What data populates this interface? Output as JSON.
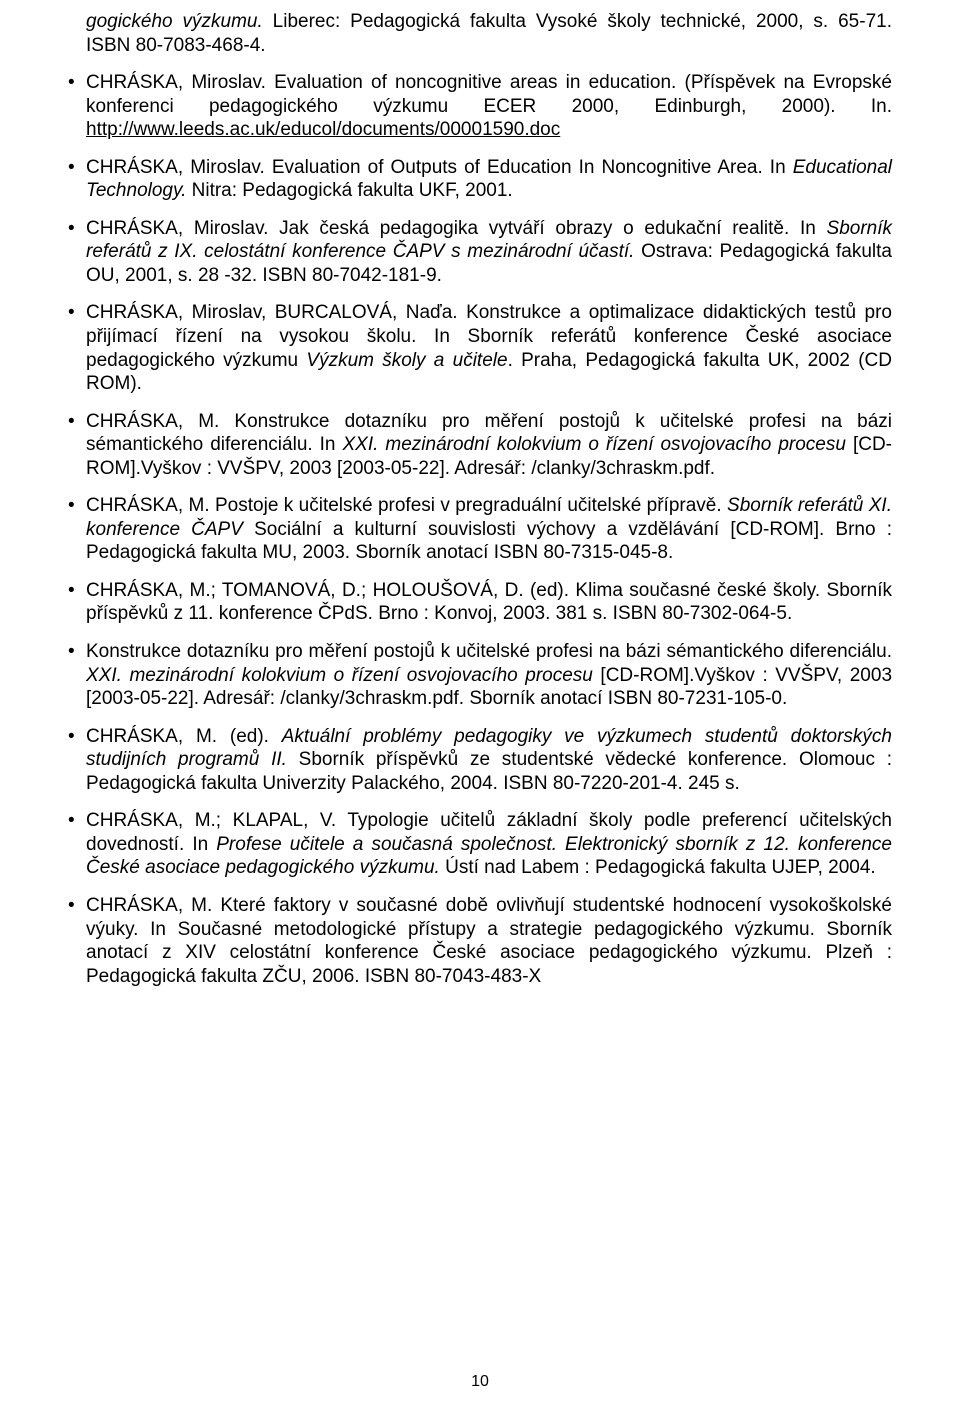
{
  "pageNumber": "10",
  "items": [
    {
      "cont": true,
      "parts": [
        {
          "t": "gogického výzkumu.",
          "i": true
        },
        {
          "t": " Liberec: Pedagogická fakulta Vysoké školy technické, 2000, s. 65-71. ISBN 80-7083-468-4."
        }
      ]
    },
    {
      "parts": [
        {
          "t": "CHRÁSKA, Miroslav. Evaluation of noncognitive areas in education. (Příspěvek na Evropské konferenci pedagogického výzkumu ECER 2000, Edinburgh, 2000). In. "
        },
        {
          "t": "http://www.leeds.ac.uk/educol/documents/00001590.doc",
          "u": true
        }
      ]
    },
    {
      "parts": [
        {
          "t": "CHRÁSKA, Miroslav. Evaluation of Outputs of Education In Noncognitive Area. In "
        },
        {
          "t": "Educational Technology.",
          "i": true
        },
        {
          "t": " Nitra: Pedagogická fakulta UKF, 2001."
        }
      ]
    },
    {
      "parts": [
        {
          "t": "CHRÁSKA, Miroslav. Jak česká pedagogika vytváří obrazy o edukační realitě. In "
        },
        {
          "t": "Sborník referátů z IX. celostátní konference ČAPV s mezinárodní účastí.",
          "i": true
        },
        {
          "t": " Ostrava: Pedagogická fakulta OU, 2001, s. 28 -32. ISBN 80-7042-181-9."
        }
      ]
    },
    {
      "parts": [
        {
          "t": "CHRÁSKA, Miroslav, BURCALOVÁ, Naďa. Konstrukce a optimalizace didaktických testů pro přijímací řízení na vysokou školu. In Sborník referátů konference České asociace pedagogického výzkumu "
        },
        {
          "t": "Výzkum školy a učitele",
          "i": true
        },
        {
          "t": ". Praha, Pedagogická fakulta UK, 2002 (CD ROM)."
        }
      ]
    },
    {
      "parts": [
        {
          "t": "CHRÁSKA, M. Konstrukce dotazníku pro měření postojů k učitelské profesi na bázi sémantického diferenciálu. In  "
        },
        {
          "t": "XXI. mezinárodní kolokvium o řízení osvojovacího procesu ",
          "i": true
        },
        {
          "t": "[CD-ROM].Vyškov : VVŠPV, 2003 [2003-05-22]. Adresář: /clanky/3chraskm.pdf."
        }
      ]
    },
    {
      "parts": [
        {
          "t": "CHRÁSKA, M. Postoje k učitelské profesi v pregraduální učitelské přípravě. "
        },
        {
          "t": "Sborník referátů XI. konference ČAPV ",
          "i": true
        },
        {
          "t": "Sociální a kulturní souvislosti výchovy a vzdělávání [CD-ROM]. Brno : Pedagogická fakulta MU, 2003. Sborník anotací ISBN 80-7315-045-8."
        }
      ]
    },
    {
      "parts": [
        {
          "t": "CHRÁSKA, M.; TOMANOVÁ, D.; HOLOUŠOVÁ, D. (ed). Klima současné české školy. Sborník příspěvků z 11. konference ČPdS. Brno : Konvoj, 2003. 381 s. ISBN 80-7302-064-5."
        }
      ]
    },
    {
      "parts": [
        {
          "t": "Konstrukce dotazníku pro měření postojů k učitelské profesi na bázi sémantického diferenciálu. "
        },
        {
          "t": "XXI. mezinárodní kolokvium o řízení osvojovacího procesu ",
          "i": true
        },
        {
          "t": "[CD-ROM].Vyškov : VVŠPV, 2003 [2003-05-22]. Adresář: /clanky/3chraskm.pdf. Sborník anotací ISBN 80-7231-105-0."
        }
      ]
    },
    {
      "parts": [
        {
          "t": "CHRÁSKA, M. (ed). "
        },
        {
          "t": "Aktuální problémy pedagogiky ve výzkumech studentů doktorských studijních programů II.",
          "i": true
        },
        {
          "t": " Sborník příspěvků ze studentské vědecké konference. Olomouc : Pedagogická fakulta Univerzity Palackého, 2004. ISBN 80-7220-201-4. 245 s."
        }
      ]
    },
    {
      "parts": [
        {
          "t": "CHRÁSKA, M.; KLAPAL, V. Typologie učitelů základní školy podle preferencí učitelských dovedností. In "
        },
        {
          "t": "Profese učitele a současná společnost. Elektronický sborník z 12. konference České asociace pedagogického výzkumu.",
          "i": true
        },
        {
          "t": " Ústí nad Labem : Pedagogická fakulta UJEP, 2004."
        }
      ]
    },
    {
      "parts": [
        {
          "t": "CHRÁSKA, M. Které faktory v současné době ovlivňují studentské hodnocení vysokoškolské výuky. In Současné metodologické přístupy a strategie pedagogického výzkumu. Sborník anotací z XIV celostátní konference České asociace pedagogického výzkumu. Plzeň :  Pedagogická fakulta ZČU, 2006. ISBN 80-7043-483-X"
        }
      ]
    }
  ]
}
